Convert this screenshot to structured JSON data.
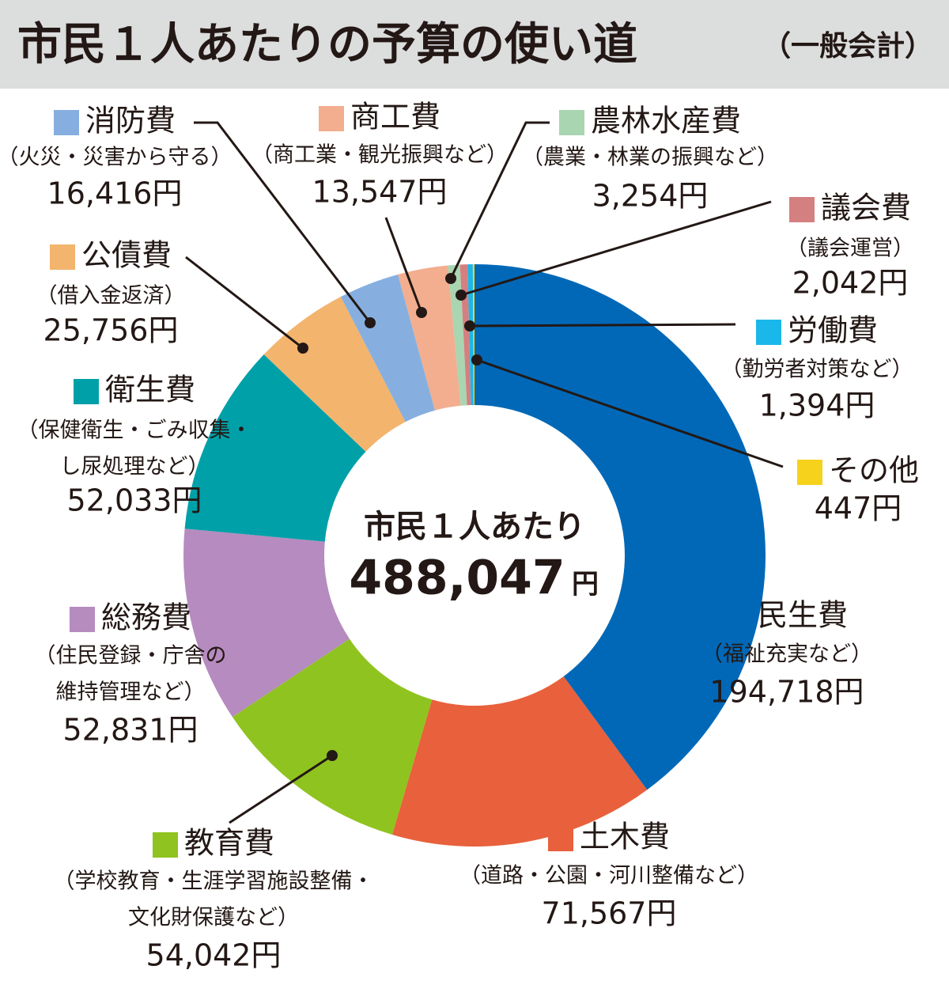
{
  "chart_data": {
    "type": "donut",
    "title": "市民１人あたりの予算の使い道",
    "title_suffix": "（一般会計）",
    "center_title": "市民１人あたり",
    "center_value": "488,047",
    "center_unit": "円",
    "categories": [
      "民生費",
      "土木費",
      "教育費",
      "総務費",
      "衛生費",
      "公債費",
      "消防費",
      "商工費",
      "農林水産費",
      "議会費",
      "労働費",
      "その他"
    ],
    "descriptions": [
      [
        "（福祉充実など）"
      ],
      [
        "（道路・公園・河川整備など）"
      ],
      [
        "（学校教育・生涯学習施設整備・",
        "文化財保護など）"
      ],
      [
        "（住民登録・庁舎の",
        "維持管理など）"
      ],
      [
        "（保健衛生・ごみ収集・",
        "し尿処理など）"
      ],
      [
        "（借入金返済）"
      ],
      [
        "（火災・災害から守る）"
      ],
      [
        "（商工業・観光振興など）"
      ],
      [
        "（農業・林業の振興など）"
      ],
      [
        "（議会運営）"
      ],
      [
        "（勤労者対策など）"
      ],
      []
    ],
    "values": [
      194718,
      71567,
      54042,
      52831,
      52033,
      25756,
      16416,
      13547,
      3254,
      2042,
      1394,
      447
    ],
    "value_labels": [
      "194,718円",
      "71,567円",
      "54,042円",
      "52,831円",
      "52,033円",
      "25,756円",
      "16,416円",
      "13,547円",
      "3,254円",
      "2,042円",
      "1,394円",
      "447円"
    ],
    "colors": [
      "#0068b7",
      "#e8603c",
      "#8fc31f",
      "#b68bbf",
      "#00a0a8",
      "#f3b46d",
      "#86afe0",
      "#f2ae8f",
      "#a9d5b1",
      "#d47f80",
      "#1ab7ea",
      "#f6d21c"
    ]
  }
}
